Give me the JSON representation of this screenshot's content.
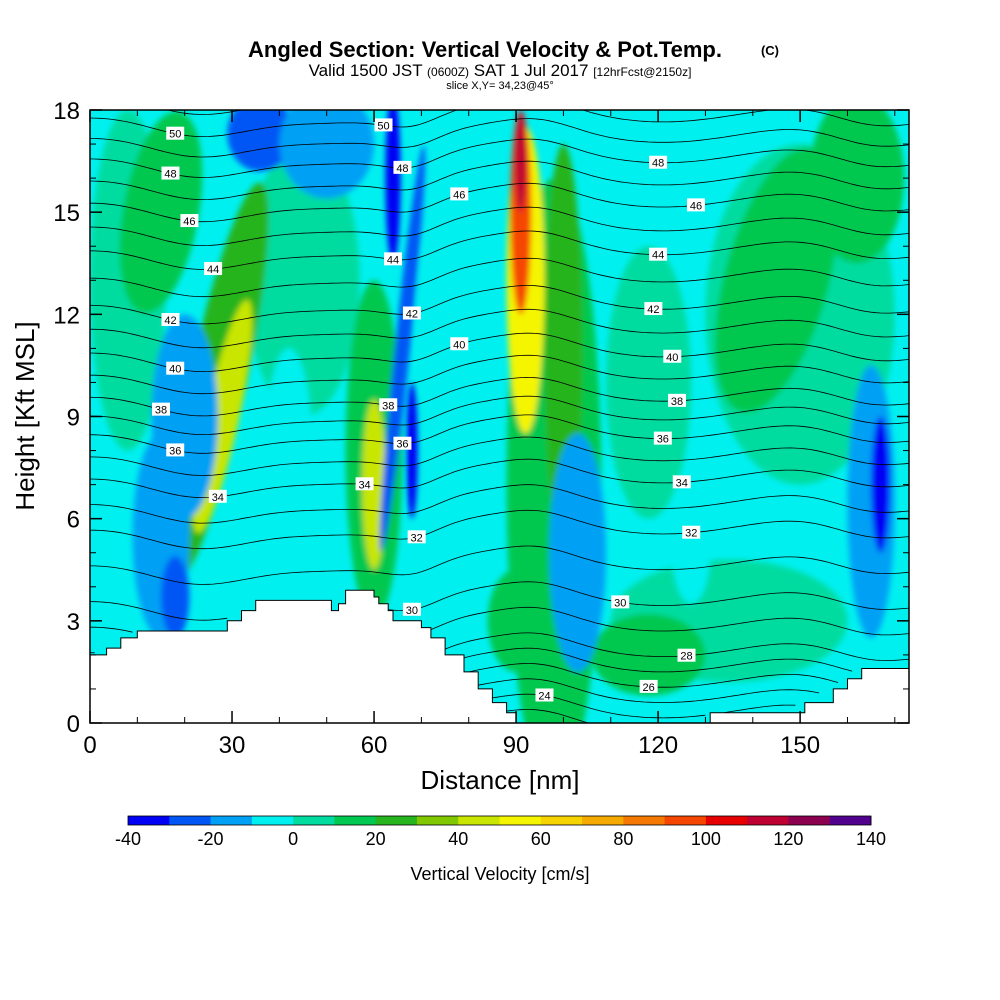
{
  "chart_data": {
    "type": "heatmap",
    "title": "Angled Section: Vertical Velocity & Pot.Temp.",
    "title_tag": "(C)",
    "subtitle": {
      "valid": "Valid 1500 JST",
      "utc": "(0600Z)",
      "date": "SAT 1 Jul 2017",
      "forecast": "[12hrFcst@2150z]",
      "slice": "slice X,Y= 34,23@45°"
    },
    "xlabel": "Distance [nm]",
    "ylabel": "Height [Kft MSL]",
    "xlim": [
      0,
      173
    ],
    "ylim": [
      0,
      18
    ],
    "xticks": [
      0,
      30,
      60,
      90,
      120,
      150
    ],
    "yticks": [
      0,
      3,
      6,
      9,
      12,
      15,
      18
    ],
    "colorbar": {
      "label": "Vertical Velocity [cm/s]",
      "tick_labels": [
        "-40",
        "-20",
        "0",
        "20",
        "40",
        "60",
        "80",
        "100",
        "120",
        "140"
      ],
      "bounds": [
        -40,
        140
      ],
      "colors": [
        "#0000f5",
        "#0056f5",
        "#00a0f5",
        "#00f0f0",
        "#00dca0",
        "#00c850",
        "#28b41e",
        "#82c800",
        "#c8e600",
        "#f5f500",
        "#f5d200",
        "#f5aa00",
        "#f57800",
        "#f54600",
        "#e60000",
        "#be0032",
        "#8c0050",
        "#50008c"
      ]
    },
    "velocity_features": [
      {
        "x": 91,
        "y": 15,
        "value": 110,
        "note": "strong updraft core"
      },
      {
        "x": 92,
        "y": 11,
        "value": 65
      },
      {
        "x": 26,
        "y": 9.5,
        "value": 50
      },
      {
        "x": 60,
        "y": 7,
        "value": 45
      },
      {
        "x": 65,
        "y": 16,
        "value": -40,
        "note": "downdraft"
      },
      {
        "x": 68,
        "y": 9,
        "value": -40
      },
      {
        "x": 167,
        "y": 7,
        "value": -30
      },
      {
        "x": 18,
        "y": 3.6,
        "value": -30
      },
      {
        "x": 33,
        "y": 17.5,
        "value": -25
      },
      {
        "x": 120,
        "y": 10,
        "value": 10
      },
      {
        "x": 150,
        "y": 14,
        "value": 20
      }
    ],
    "potential_temperature_contours": [
      {
        "value": 24,
        "label": "24"
      },
      {
        "value": 26,
        "label": "26"
      },
      {
        "value": 28,
        "label": "28"
      },
      {
        "value": 30,
        "label": "30"
      },
      {
        "value": 32,
        "label": "32"
      },
      {
        "value": 34,
        "label": "34"
      },
      {
        "value": 36,
        "label": "36"
      },
      {
        "value": 38,
        "label": "38"
      },
      {
        "value": 40,
        "label": "40"
      },
      {
        "value": 42,
        "label": "42"
      },
      {
        "value": 44,
        "label": "44"
      },
      {
        "value": 46,
        "label": "46"
      },
      {
        "value": 48,
        "label": "48"
      },
      {
        "value": 50,
        "label": "50"
      }
    ],
    "terrain": [
      {
        "x": 0,
        "h": 2.0
      },
      {
        "x": 3.5,
        "h": 2.2
      },
      {
        "x": 6.5,
        "h": 2.5
      },
      {
        "x": 10,
        "h": 2.7
      },
      {
        "x": 26,
        "h": 2.7
      },
      {
        "x": 29,
        "h": 3.0
      },
      {
        "x": 32,
        "h": 3.3
      },
      {
        "x": 35,
        "h": 3.6
      },
      {
        "x": 48,
        "h": 3.6
      },
      {
        "x": 51,
        "h": 3.3
      },
      {
        "x": 52.5,
        "h": 3.5
      },
      {
        "x": 54,
        "h": 3.9
      },
      {
        "x": 60,
        "h": 3.7
      },
      {
        "x": 61,
        "h": 3.5
      },
      {
        "x": 63,
        "h": 3.3
      },
      {
        "x": 64,
        "h": 3.0
      },
      {
        "x": 70,
        "h": 2.8
      },
      {
        "x": 72,
        "h": 2.5
      },
      {
        "x": 75,
        "h": 2.0
      },
      {
        "x": 79,
        "h": 1.5
      },
      {
        "x": 82,
        "h": 1.0
      },
      {
        "x": 85,
        "h": 0.6
      },
      {
        "x": 88,
        "h": 0.3
      },
      {
        "x": 90,
        "h": 0.0
      },
      {
        "x": 128,
        "h": 0.0
      },
      {
        "x": 131,
        "h": 0.3
      },
      {
        "x": 147,
        "h": 0.3
      },
      {
        "x": 151,
        "h": 0.6
      },
      {
        "x": 157,
        "h": 1.0
      },
      {
        "x": 160,
        "h": 1.3
      },
      {
        "x": 163,
        "h": 1.6
      },
      {
        "x": 173,
        "h": 1.6
      }
    ]
  }
}
